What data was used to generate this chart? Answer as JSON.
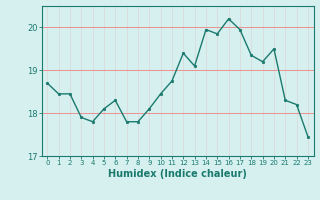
{
  "x": [
    0,
    1,
    2,
    3,
    4,
    5,
    6,
    7,
    8,
    9,
    10,
    11,
    12,
    13,
    14,
    15,
    16,
    17,
    18,
    19,
    20,
    21,
    22,
    23
  ],
  "y": [
    18.7,
    18.45,
    18.45,
    17.9,
    17.8,
    18.1,
    18.3,
    17.8,
    17.8,
    18.1,
    18.45,
    18.75,
    19.4,
    19.1,
    19.95,
    19.85,
    20.2,
    19.95,
    19.35,
    19.2,
    19.5,
    18.3,
    18.2,
    17.45
  ],
  "line_color": "#1a7a6e",
  "marker": "o",
  "marker_size": 1.8,
  "linewidth": 1.0,
  "bg_color": "#d6f0f0",
  "grid_color_h": "#f08080",
  "grid_color_v": "#c8e8e8",
  "xlabel": "Humidex (Indice chaleur)",
  "xlim": [
    -0.5,
    23.5
  ],
  "ylim": [
    17.0,
    20.5
  ],
  "yticks": [
    17,
    18,
    19,
    20
  ],
  "xtick_labels": [
    "0",
    "1",
    "2",
    "3",
    "4",
    "5",
    "6",
    "7",
    "8",
    "9",
    "10",
    "11",
    "12",
    "13",
    "14",
    "15",
    "16",
    "17",
    "18",
    "19",
    "20",
    "21",
    "22",
    "23"
  ]
}
